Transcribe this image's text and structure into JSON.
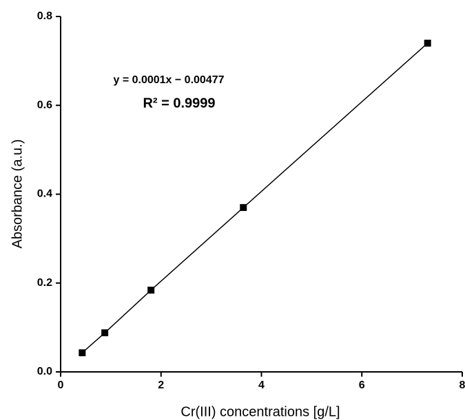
{
  "chart_data": {
    "type": "scatter",
    "x_label": "Cr(III) concentrations [g/L]",
    "y_label": "Absorbance (a.u.)",
    "annotations": [
      "y = 0.0001x − 0.00477",
      "R² = 0.9999"
    ],
    "series": [
      {
        "x": [
          0.43,
          0.88,
          1.8,
          3.64,
          7.31
        ],
        "values": [
          0.043,
          0.088,
          0.184,
          0.37,
          0.74
        ],
        "color": "#000000"
      }
    ],
    "connect": true,
    "xlim": [
      0,
      8
    ],
    "xticks": [
      0,
      2,
      4,
      6,
      8
    ],
    "ylim": [
      0,
      0.8
    ],
    "yticks": [
      {
        "value": 0,
        "label": "0.0"
      },
      0.2,
      0.4,
      0.6,
      0.8
    ],
    "grid": false
  }
}
